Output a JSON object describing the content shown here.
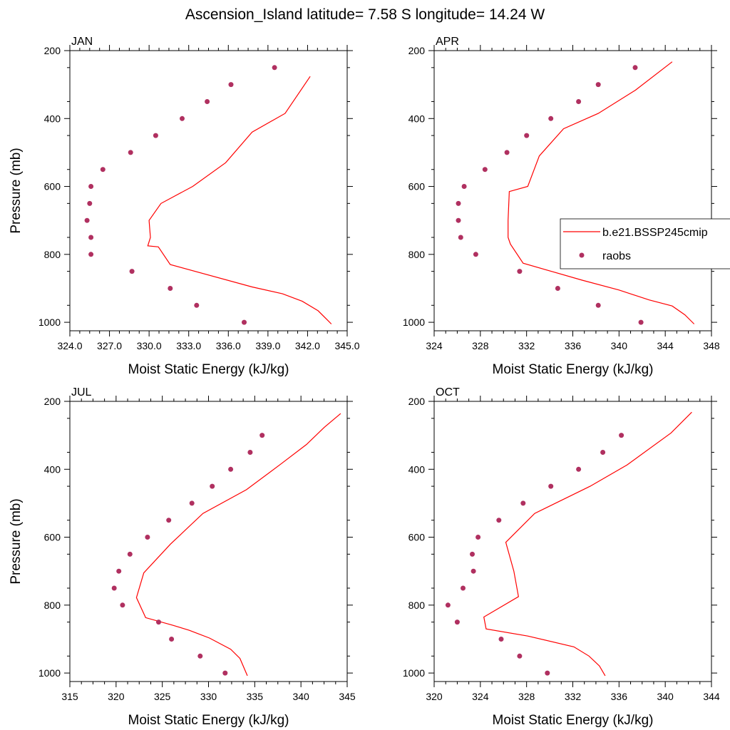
{
  "title": "Ascension_Island  latitude= 7.58 S longitude= 14.24 W",
  "legend": {
    "placement": "right of APR panel",
    "model_label": "b.e21.BSSP245cmip",
    "obs_label": "raobs"
  },
  "colors": {
    "model_line": "#ff0000",
    "obs_marker": "#b03060"
  },
  "chart_data": [
    {
      "type": "line",
      "panel_title": "JAN",
      "xlabel": "Moist Static Energy (kJ/kg)",
      "ylabel": "Pressure (mb)",
      "xlim": [
        324,
        345
      ],
      "ylim": [
        1025,
        200
      ],
      "xticks": [
        "324.0",
        "327.0",
        "330.0",
        "333.0",
        "336.0",
        "339.0",
        "342.0",
        "345.0"
      ],
      "yticks": [
        "200",
        "400",
        "600",
        "800",
        "1000"
      ],
      "series": [
        {
          "name": "b.e21.BSSP245cmip",
          "x": [
            343.8,
            343.5,
            342.8,
            341.6,
            340.1,
            337.8,
            331.6,
            330.7,
            329.9,
            330.1,
            330.0,
            330.9,
            333.3,
            335.8,
            337.8,
            340.3,
            342.2
          ],
          "y": [
            1005,
            993,
            966,
            938,
            916,
            896,
            830,
            778,
            775,
            750,
            700,
            650,
            600,
            530,
            440,
            385,
            276
          ]
        },
        {
          "name": "raobs",
          "x": [
            337.2,
            333.6,
            331.6,
            328.7,
            325.6,
            325.6,
            325.3,
            325.5,
            325.6,
            326.5,
            328.6,
            330.5,
            332.5,
            334.4,
            336.2,
            339.5
          ],
          "y": [
            1000,
            950,
            900,
            850,
            800,
            750,
            700,
            650,
            600,
            550,
            500,
            450,
            400,
            350,
            300,
            250
          ]
        }
      ]
    },
    {
      "type": "line",
      "panel_title": "APR",
      "xlabel": "Moist Static Energy (kJ/kg)",
      "ylabel": "",
      "xlim": [
        324,
        348
      ],
      "ylim": [
        1025,
        200
      ],
      "xticks": [
        "324",
        "328",
        "332",
        "336",
        "340",
        "344",
        "348"
      ],
      "yticks": [
        "200",
        "400",
        "600",
        "800",
        "1000"
      ],
      "series": [
        {
          "name": "b.e21.BSSP245cmip",
          "x": [
            346.5,
            345.7,
            344.6,
            342.6,
            340.0,
            336.8,
            331.7,
            330.6,
            330.4,
            330.4,
            330.5,
            332.1,
            333.1,
            335.2,
            338.2,
            341.4,
            344.6
          ],
          "y": [
            1005,
            978,
            952,
            934,
            905,
            876,
            826,
            770,
            750,
            700,
            615,
            600,
            510,
            430,
            385,
            317,
            233
          ]
        },
        {
          "name": "raobs",
          "x": [
            341.9,
            338.2,
            334.7,
            331.4,
            327.6,
            326.3,
            326.1,
            326.1,
            326.6,
            328.4,
            330.3,
            332.0,
            334.1,
            336.5,
            338.2,
            341.4
          ],
          "y": [
            1000,
            950,
            900,
            850,
            800,
            750,
            700,
            650,
            600,
            550,
            500,
            450,
            400,
            350,
            300,
            250
          ]
        }
      ]
    },
    {
      "type": "line",
      "panel_title": "JUL",
      "xlabel": "Moist Static Energy (kJ/kg)",
      "ylabel": "Pressure (mb)",
      "xlim": [
        315,
        345
      ],
      "ylim": [
        1025,
        200
      ],
      "xticks": [
        "315",
        "320",
        "325",
        "330",
        "335",
        "340",
        "345"
      ],
      "yticks": [
        "200",
        "400",
        "600",
        "800",
        "1000"
      ],
      "series": [
        {
          "name": "b.e21.BSSP245cmip",
          "x": [
            334.2,
            333.4,
            332.4,
            330.1,
            327.9,
            326.1,
            323.2,
            322.2,
            323.0,
            325.9,
            329.4,
            334.1,
            337.9,
            340.6,
            342.5,
            344.3
          ],
          "y": [
            1008,
            957,
            930,
            897,
            874,
            859,
            837,
            778,
            705,
            620,
            530,
            460,
            383,
            327,
            277,
            236
          ]
        },
        {
          "name": "raobs",
          "x": [
            331.8,
            329.1,
            326.0,
            324.6,
            320.7,
            319.8,
            320.3,
            321.5,
            323.4,
            325.7,
            328.2,
            330.4,
            332.4,
            334.5,
            335.8
          ],
          "y": [
            1000,
            950,
            900,
            850,
            800,
            750,
            700,
            650,
            600,
            550,
            500,
            450,
            400,
            350,
            300
          ]
        }
      ]
    },
    {
      "type": "line",
      "panel_title": "OCT",
      "xlabel": "Moist Static Energy (kJ/kg)",
      "ylabel": "",
      "xlim": [
        320,
        344
      ],
      "ylim": [
        1025,
        200
      ],
      "xticks": [
        "320",
        "324",
        "328",
        "332",
        "336",
        "340",
        "344"
      ],
      "yticks": [
        "200",
        "400",
        "600",
        "800",
        "1000"
      ],
      "series": [
        {
          "name": "b.e21.BSSP245cmip",
          "x": [
            334.8,
            334.3,
            333.4,
            332.1,
            328.1,
            324.5,
            324.3,
            327.3,
            326.9,
            326.2,
            328.7,
            333.5,
            336.7,
            340.5,
            342.3
          ],
          "y": [
            1008,
            979,
            950,
            923,
            891,
            870,
            835,
            775,
            700,
            615,
            530,
            450,
            387,
            293,
            232
          ]
        },
        {
          "name": "raobs",
          "x": [
            329.8,
            327.4,
            325.8,
            322.0,
            321.2,
            322.5,
            323.4,
            323.3,
            323.8,
            325.6,
            327.7,
            330.1,
            332.5,
            334.6,
            336.2
          ],
          "y": [
            1000,
            950,
            900,
            850,
            800,
            750,
            700,
            650,
            600,
            550,
            500,
            450,
            400,
            350,
            300
          ]
        }
      ]
    }
  ]
}
